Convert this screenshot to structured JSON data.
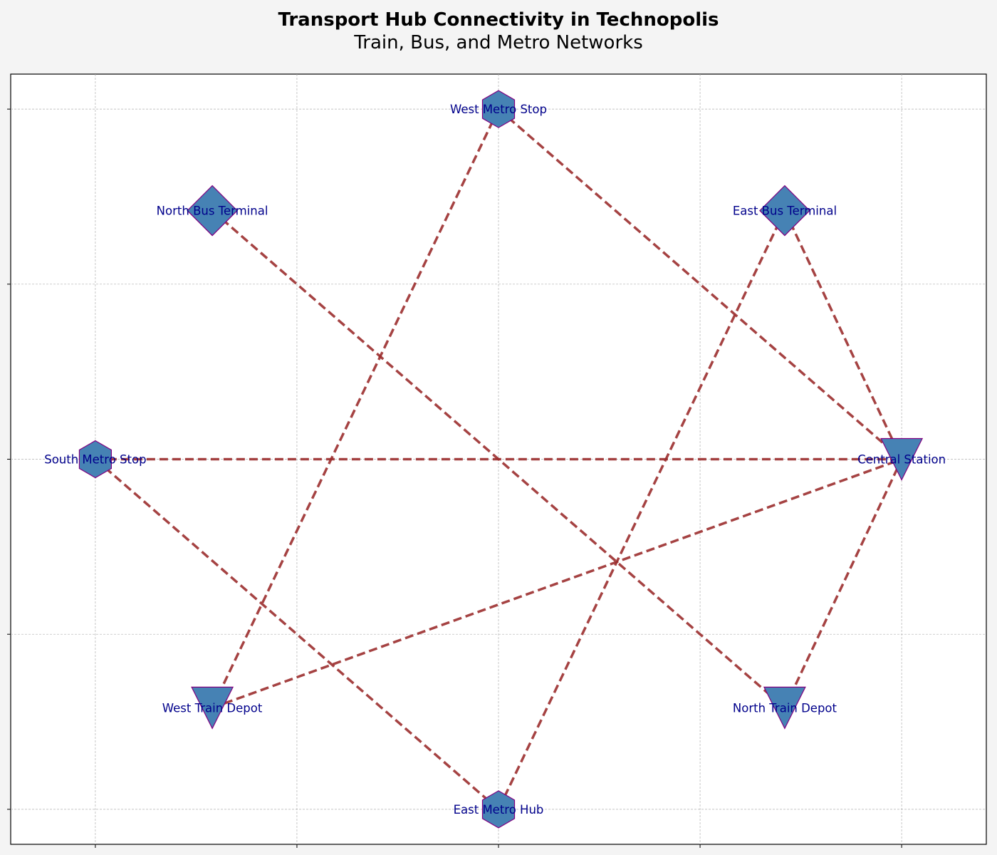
{
  "title": {
    "line1": "Transport Hub Connectivity in Technopolis",
    "line2": "Train, Bus, and Metro Networks"
  },
  "colors": {
    "background": "#f4f4f4",
    "plot_background": "#ffffff",
    "node_fill": "#4682b4",
    "node_edge": "#800080",
    "edge_color": "#9b2d2d",
    "label_color": "#00008b",
    "grid_color": "#b0b0b0"
  },
  "chart_data": {
    "type": "network",
    "grid": true,
    "xlim": [
      -1.21,
      1.21
    ],
    "ylim": [
      -1.1,
      1.1
    ],
    "xticks": [
      -1.0,
      -0.5,
      0.0,
      0.5,
      1.0
    ],
    "yticks": [
      -1.0,
      -0.5,
      0.0,
      0.5,
      1.0
    ],
    "nodes": [
      {
        "id": "central-station",
        "label": "Central Station",
        "shape": "triangle-down",
        "x": 1.0,
        "y": 0.0
      },
      {
        "id": "east-bus-terminal",
        "label": "East Bus Terminal",
        "shape": "diamond",
        "x": 0.71,
        "y": 0.71
      },
      {
        "id": "west-metro-stop",
        "label": "West Metro Stop",
        "shape": "hexagon",
        "x": 0.0,
        "y": 1.0
      },
      {
        "id": "north-bus-terminal",
        "label": "North Bus Terminal",
        "shape": "diamond",
        "x": -0.71,
        "y": 0.71
      },
      {
        "id": "south-metro-stop",
        "label": "South Metro Stop",
        "shape": "hexagon",
        "x": -1.0,
        "y": 0.0
      },
      {
        "id": "west-train-depot",
        "label": "West Train Depot",
        "shape": "triangle-down",
        "x": -0.71,
        "y": -0.71
      },
      {
        "id": "east-metro-hub",
        "label": "East Metro Hub",
        "shape": "hexagon",
        "x": 0.0,
        "y": -1.0
      },
      {
        "id": "north-train-depot",
        "label": "North Train Depot",
        "shape": "triangle-down",
        "x": 0.71,
        "y": -0.71
      }
    ],
    "edges": [
      [
        "west-metro-stop",
        "central-station"
      ],
      [
        "east-bus-terminal",
        "central-station"
      ],
      [
        "south-metro-stop",
        "central-station"
      ],
      [
        "west-train-depot",
        "central-station"
      ],
      [
        "north-train-depot",
        "central-station"
      ],
      [
        "north-bus-terminal",
        "north-train-depot"
      ],
      [
        "west-metro-stop",
        "west-train-depot"
      ],
      [
        "east-bus-terminal",
        "east-metro-hub"
      ],
      [
        "south-metro-stop",
        "east-metro-hub"
      ]
    ]
  }
}
